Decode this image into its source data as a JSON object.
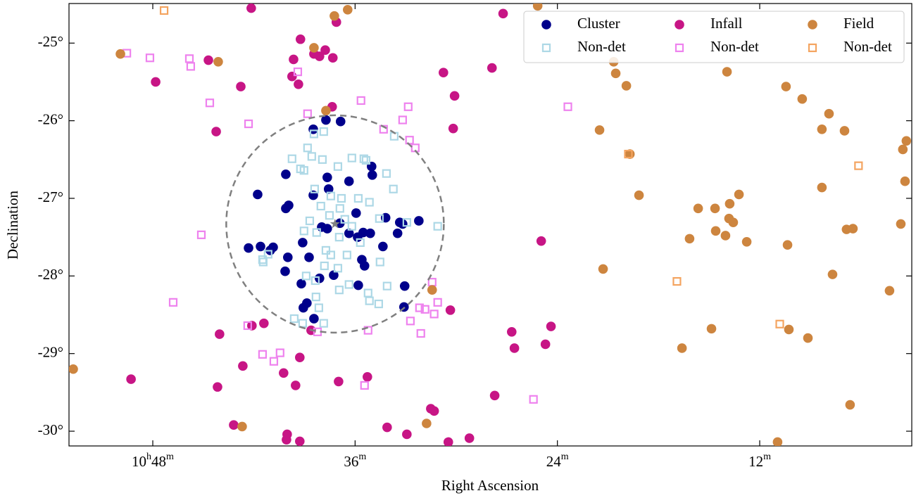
{
  "chart_data": {
    "type": "scatter",
    "xlabel": "Right Ascension",
    "ylabel": "Declination",
    "xlim": [
      52.97,
      2.98
    ],
    "ylim": [
      -24.49,
      -30.19
    ],
    "xticks": [
      {
        "value": 48,
        "label": "10h48m"
      },
      {
        "value": 36,
        "label": "36m"
      },
      {
        "value": 24,
        "label": "24m"
      },
      {
        "value": 12,
        "label": "12m"
      }
    ],
    "yticks": [
      {
        "value": -25,
        "label": "-25°"
      },
      {
        "value": -26,
        "label": "-26°"
      },
      {
        "value": -27,
        "label": "-27°"
      },
      {
        "value": -28,
        "label": "-28°"
      },
      {
        "value": -29,
        "label": "-29°"
      },
      {
        "value": -30,
        "label": "-30°"
      }
    ],
    "legend": "upper right",
    "region": {
      "center_x": 37.19,
      "center_y": -27.33,
      "radius": 1.4,
      "color": "#808080"
    },
    "series": [
      {
        "name": "Cluster",
        "color": "#00008b",
        "marker": "circle",
        "x": [
          37.73,
          36.86,
          38.48,
          40.11,
          35.02,
          34.98,
          37.65,
          36.36,
          41.78,
          38.48,
          37.57,
          39.94,
          40.11,
          35.94,
          32.22,
          33.35,
          33.18,
          34.19,
          37.98,
          37.65,
          36.9,
          35.52,
          36.36,
          35.1,
          35.85,
          33.48,
          42.32,
          41.61,
          40.86,
          41.03,
          39.99,
          39.11,
          38.73,
          34.35,
          35.6,
          35.44,
          40.15,
          37.27,
          38.11,
          39.19,
          35.81,
          33.06,
          38.86,
          39.07,
          33.1,
          38.44
        ],
        "y": [
          -25.99,
          -26.01,
          -26.11,
          -26.69,
          -26.59,
          -26.7,
          -26.73,
          -26.78,
          -26.95,
          -26.96,
          -26.88,
          -27.09,
          -27.13,
          -27.19,
          -27.29,
          -27.31,
          -27.33,
          -27.25,
          -27.37,
          -27.39,
          -27.32,
          -27.44,
          -27.45,
          -27.45,
          -27.5,
          -27.45,
          -27.64,
          -27.62,
          -27.63,
          -27.67,
          -27.76,
          -27.57,
          -27.76,
          -27.62,
          -27.79,
          -27.87,
          -27.94,
          -27.99,
          -28.03,
          -28.1,
          -28.12,
          -28.13,
          -28.35,
          -28.41,
          -28.4,
          -28.55
        ]
      },
      {
        "name": "Non-det",
        "color": "#add8e6",
        "marker": "square",
        "x": [
          38.44,
          37.86,
          39.74,
          38.82,
          38.57,
          37.94,
          37.02,
          36.19,
          35.48,
          35.35,
          34.14,
          33.73,
          33.68,
          39.24,
          39.03,
          38.4,
          37.44,
          36.81,
          35.81,
          35.15,
          38.03,
          36.9,
          38.69,
          39.03,
          37.52,
          36.61,
          36.19,
          34.56,
          32.93,
          31.1,
          38.28,
          36.94,
          35.69,
          41.16,
          41.45,
          37.73,
          37.44,
          36.48,
          37.82,
          37.02,
          38.9,
          38.36,
          36.36,
          36.94,
          34.1,
          35.23,
          35.15,
          34.6,
          38.32,
          38.15,
          39.61,
          39.11,
          37.86,
          41.49,
          34.52
        ],
        "y": [
          -26.17,
          -26.14,
          -26.49,
          -26.35,
          -26.46,
          -26.5,
          -26.59,
          -26.48,
          -26.49,
          -26.51,
          -26.68,
          -26.88,
          -26.2,
          -26.62,
          -26.64,
          -26.88,
          -26.97,
          -27.0,
          -27.0,
          -27.05,
          -27.1,
          -27.13,
          -27.29,
          -27.42,
          -27.22,
          -27.27,
          -27.36,
          -27.26,
          -27.31,
          -27.36,
          -27.44,
          -27.5,
          -27.57,
          -27.72,
          -27.82,
          -27.67,
          -27.73,
          -27.73,
          -27.87,
          -27.9,
          -28.0,
          -28.06,
          -28.11,
          -28.18,
          -28.13,
          -28.22,
          -28.32,
          -28.36,
          -28.27,
          -28.41,
          -28.55,
          -28.61,
          -28.61,
          -27.79,
          -27.82
        ]
      },
      {
        "name": "Infall",
        "color": "#c71585",
        "marker": "circle",
        "x": [
          42.16,
          37.11,
          39.24,
          44.7,
          39.65,
          38.44,
          38.11,
          37.77,
          37.32,
          47.83,
          42.78,
          39.74,
          39.36,
          44.24,
          37.36,
          30.76,
          27.88,
          30.1,
          30.18,
          27.22,
          24.96,
          42.12,
          41.41,
          44.04,
          38.61,
          30.35,
          26.71,
          26.55,
          24.38,
          24.71,
          49.29,
          42.66,
          40.24,
          39.28,
          44.16,
          39.53,
          36.98,
          35.27,
          27.72,
          31.51,
          31.31,
          43.2,
          40.03,
          40.07,
          39.28,
          34.1,
          32.93,
          30.47,
          29.22
        ],
        "y": [
          -24.55,
          -24.73,
          -24.95,
          -25.22,
          -25.21,
          -25.14,
          -25.17,
          -25.09,
          -25.19,
          -25.5,
          -25.56,
          -25.43,
          -25.53,
          -26.14,
          -25.82,
          -25.38,
          -25.32,
          -25.68,
          -26.1,
          -24.62,
          -27.55,
          -28.64,
          -28.61,
          -28.75,
          -28.7,
          -28.44,
          -28.72,
          -28.93,
          -28.65,
          -28.88,
          -29.33,
          -29.16,
          -29.25,
          -29.05,
          -29.43,
          -29.41,
          -29.36,
          -29.3,
          -29.54,
          -29.71,
          -29.74,
          -29.92,
          -30.04,
          -30.11,
          -30.13,
          -29.95,
          -30.04,
          -30.14,
          -30.09
        ]
      },
      {
        "name": "Non-det",
        "color": "#ee82ee",
        "marker": "square",
        "x": [
          49.54,
          48.17,
          45.83,
          45.75,
          44.62,
          42.32,
          39.4,
          38.82,
          35.65,
          32.85,
          33.18,
          34.31,
          32.77,
          32.43,
          23.38,
          45.12,
          46.79,
          42.37,
          41.49,
          40.82,
          40.45,
          38.23,
          35.23,
          32.72,
          32.18,
          31.85,
          31.31,
          31.1,
          31.43,
          32.1,
          35.44,
          25.42
        ],
        "y": [
          -25.13,
          -25.19,
          -25.2,
          -25.3,
          -25.77,
          -26.04,
          -25.37,
          -25.91,
          -25.74,
          -25.82,
          -25.99,
          -26.11,
          -26.25,
          -26.35,
          -25.82,
          -27.47,
          -28.34,
          -28.64,
          -29.01,
          -29.1,
          -28.99,
          -28.72,
          -28.7,
          -28.58,
          -28.41,
          -28.43,
          -28.49,
          -28.34,
          -28.08,
          -28.74,
          -29.41,
          -29.59
        ]
      },
      {
        "name": "Field",
        "color": "#cd853f",
        "marker": "circle",
        "x": [
          49.92,
          44.12,
          38.44,
          37.23,
          36.44,
          37.73,
          25.17,
          20.66,
          20.54,
          19.91,
          21.5,
          19.7,
          19.16,
          13.94,
          10.44,
          9.48,
          7.89,
          8.31,
          6.97,
          3.3,
          3.51,
          3.38,
          8.31,
          13.23,
          13.78,
          15.65,
          14.65,
          13.82,
          13.57,
          16.16,
          14.61,
          14.03,
          12.77,
          10.35,
          21.29,
          7.68,
          6.85,
          6.47,
          3.63,
          4.3,
          31.43,
          14.86,
          16.61,
          10.27,
          9.14,
          6.64,
          31.76,
          42.7,
          10.94,
          52.72
        ],
        "y": [
          -25.14,
          -25.24,
          -25.06,
          -24.65,
          -24.57,
          -25.87,
          -24.52,
          -25.24,
          -25.39,
          -25.55,
          -26.12,
          -26.43,
          -26.96,
          -25.37,
          -25.56,
          -25.72,
          -25.91,
          -26.11,
          -26.13,
          -26.26,
          -26.37,
          -26.78,
          -26.86,
          -26.95,
          -27.07,
          -27.13,
          -27.13,
          -27.26,
          -27.31,
          -27.52,
          -27.42,
          -27.48,
          -27.56,
          -27.6,
          -27.91,
          -27.98,
          -27.4,
          -27.39,
          -27.33,
          -28.19,
          -28.18,
          -28.68,
          -28.93,
          -28.69,
          -28.8,
          -29.66,
          -29.9,
          -29.94,
          -30.14,
          -29.2
        ]
      },
      {
        "name": "Non-det",
        "color": "#f4a460",
        "marker": "square",
        "x": [
          47.33,
          19.79,
          6.14,
          16.91,
          10.81
        ],
        "y": [
          -24.58,
          -26.43,
          -26.58,
          -28.07,
          -28.62
        ]
      }
    ]
  }
}
